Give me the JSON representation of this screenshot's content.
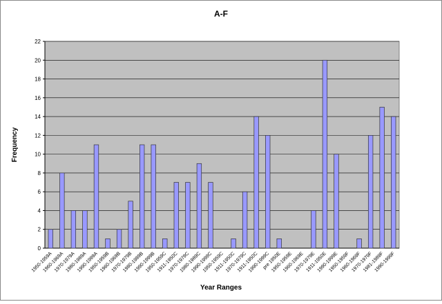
{
  "chart_data": {
    "type": "bar",
    "title": "A-F",
    "x_label": "Year Ranges",
    "y_label": "Frequency",
    "categories": [
      "1950-1959A",
      "1960-1969A",
      "1970-1979A",
      "1980-1989A",
      "1990-1999A",
      "1950-1959B",
      "1960-1969B",
      "1970-1979B",
      "1980-1989B",
      "1990-1999B",
      "1950-1959C",
      "1911-1950C",
      "1970-1979C",
      "1980-1989C",
      "1990-1999C",
      "1950-1959C",
      "1911-1950C",
      "1970-1979C",
      "1911-1950C",
      "1990-1999C",
      "pre 1950E",
      "1950-1959E",
      "1960-1969E",
      "1970-1979E",
      "1911-1950E",
      "1990-1999E",
      "1950-1959F",
      "1960-1969F",
      "1970-1979F",
      "1981-1989F",
      "1990-1999F"
    ],
    "values": [
      2,
      8,
      4,
      4,
      11,
      1,
      2,
      5,
      11,
      11,
      1,
      7,
      7,
      9,
      7,
      0,
      1,
      6,
      14,
      12,
      1,
      0,
      0,
      4,
      20,
      10,
      0,
      1,
      12,
      15,
      14
    ],
    "color": "#9999ff",
    "ylim": [
      0,
      22
    ],
    "yticks": [
      0,
      2,
      4,
      6,
      8,
      10,
      12,
      14,
      16,
      18,
      20,
      22
    ],
    "grid": true
  }
}
